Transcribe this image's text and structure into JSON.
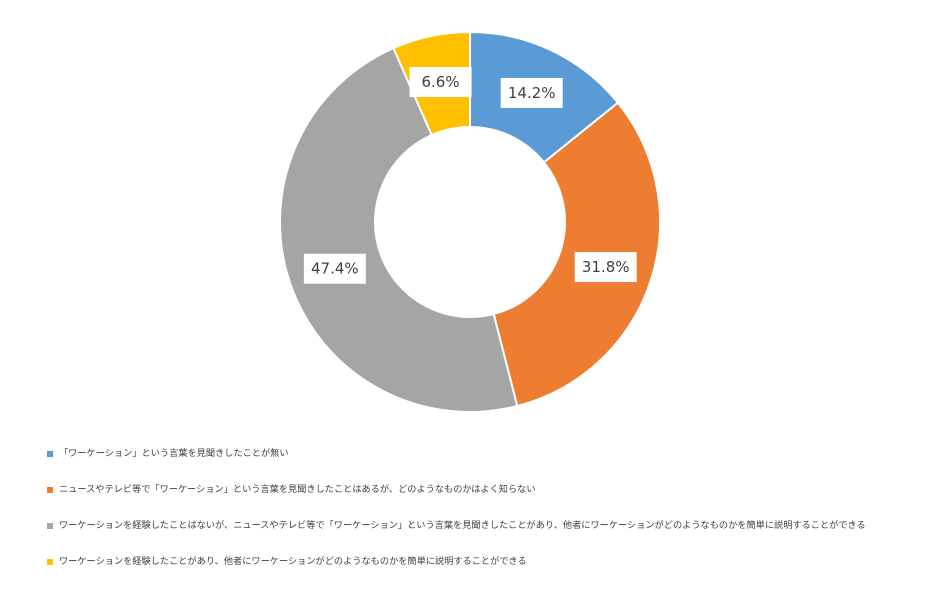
{
  "chart_data": {
    "type": "pie",
    "donut": true,
    "start": "top, clockwise",
    "categories": [
      "「ワーケーション」という言葉を見聞きしたことが無い",
      "ニュースやテレビ等で「ワーケーション」という言葉を見聞きしたことはあるが、どのようなものかはよく知らない",
      "ワーケーションを経験したことはないが、ニュースやテレビ等で「ワーケーション」という言葉を見聞きしたことがあり、他者にワーケーションがどのようなものかを簡単に説明することができる",
      "ワーケーションを経験したことがあり、他者にワーケーションがどのようなものかを簡単に説明することができる"
    ],
    "values": [
      14.2,
      31.8,
      47.4,
      6.6
    ],
    "data_labels": [
      "14.2%",
      "31.8%",
      "47.4%",
      "6.6%"
    ],
    "colors": [
      "#5B9BD5",
      "#ED7D31",
      "#A5A5A5",
      "#FFC000"
    ],
    "legend": "bottom-left"
  }
}
